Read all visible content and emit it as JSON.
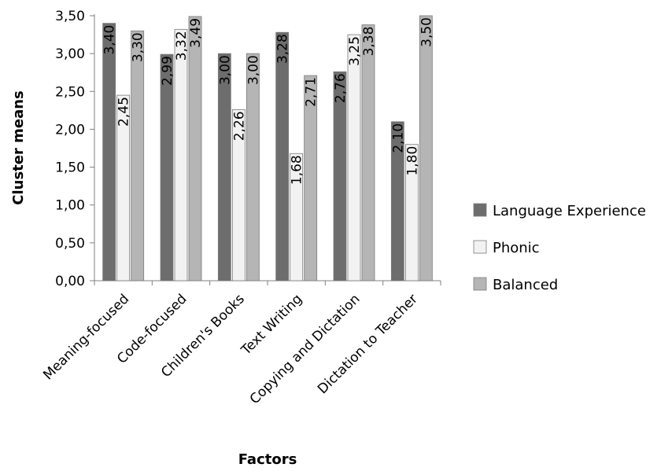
{
  "chart_data": {
    "type": "bar",
    "categories": [
      "Meaning-focused",
      "Code-focused",
      "Children's Books",
      "Text Writing",
      "Copying and Dictation",
      "Dictation to Teacher"
    ],
    "series": [
      {
        "name": "Language Experience",
        "values": [
          3.4,
          2.99,
          3.0,
          3.28,
          2.76,
          2.1
        ],
        "labels": [
          "3,40",
          "2,99",
          "3,00",
          "3,28",
          "2,76",
          "2,10"
        ],
        "color": "#6d6d6d"
      },
      {
        "name": "Phonic",
        "values": [
          2.45,
          3.32,
          2.26,
          1.68,
          3.25,
          1.8
        ],
        "labels": [
          "2,45",
          "3,32",
          "2,26",
          "1,68",
          "3,25",
          "1,80"
        ],
        "color": "#f2f2f2"
      },
      {
        "name": "Balanced",
        "values": [
          3.3,
          3.49,
          3.0,
          2.71,
          3.38,
          3.5
        ],
        "labels": [
          "3,30",
          "3,49",
          "3,00",
          "2,71",
          "3,38",
          "3,50"
        ],
        "color": "#b5b5b5"
      }
    ],
    "xlabel": "Factors",
    "ylabel": "Cluster means",
    "ylim": [
      0,
      3.5
    ],
    "yticks": [
      "0,00",
      "0,50",
      "1,00",
      "1,50",
      "2,00",
      "2,50",
      "3,00",
      "3,50"
    ],
    "grid": false,
    "legend_position": "right"
  }
}
